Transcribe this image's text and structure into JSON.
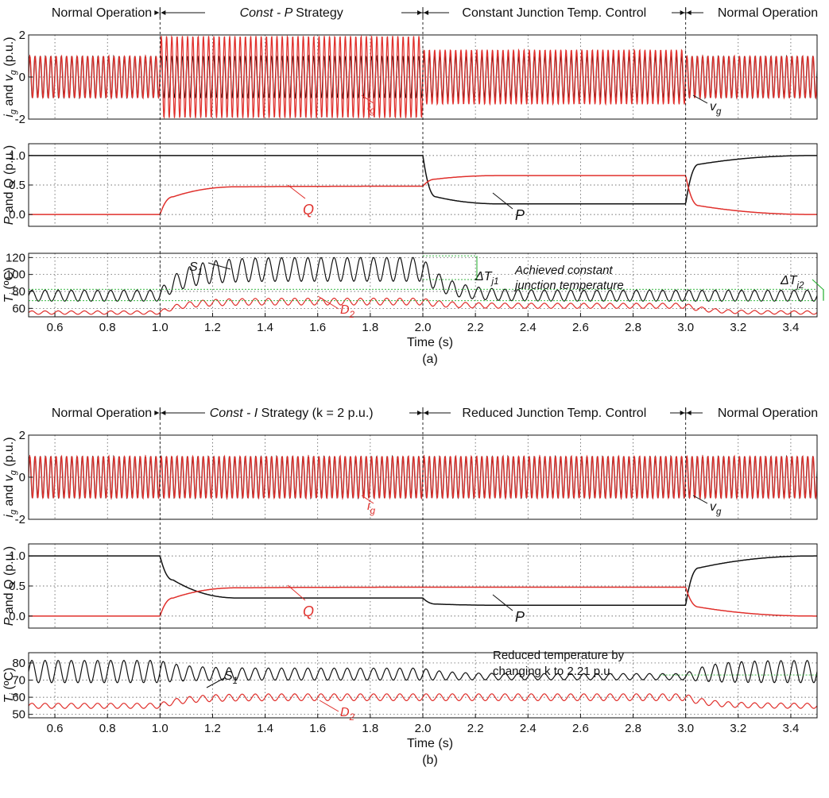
{
  "figure": {
    "colors": {
      "grid_current": "#e0302c",
      "grid_voltage": "#111111",
      "reactive_power": "#e0302c",
      "active_power": "#111111",
      "s1": "#111111",
      "d2": "#e0302c",
      "reference": "#1fae2a",
      "text": "#111111",
      "red_text": "#e0302c"
    },
    "panels": [
      {
        "caption": "(a)",
        "x_label": "Time (s)",
        "phases": [
          {
            "text": "Normal Operation",
            "italic_prefix": ""
          },
          {
            "text": "Strategy",
            "italic_prefix": "Const - P"
          },
          {
            "text": "Constant Junction Temp. Control",
            "italic_prefix": ""
          },
          {
            "text": "Normal Operation",
            "italic_prefix": ""
          }
        ],
        "annotations": {
          "ig": "i",
          "ig_sub": "g",
          "vg": "v",
          "vg_sub": "g",
          "Q": "Q",
          "P": "P",
          "S1": "S",
          "S1_sub": "1",
          "D2": "D",
          "D2_sub": "2",
          "dTj1": "ΔT",
          "dTj1_sub": "j1",
          "dTj2": "ΔT",
          "dTj2_sub": "j2",
          "note1": "Achieved constant",
          "note2": "junction temperature"
        }
      },
      {
        "caption": "(b)",
        "x_label": "Time (s)",
        "phases": [
          {
            "text": "Normal Operation",
            "italic_prefix": ""
          },
          {
            "text": "Strategy (k = 2 p.u.)",
            "italic_prefix": "Const - I"
          },
          {
            "text": "Reduced Junction Temp. Control",
            "italic_prefix": ""
          },
          {
            "text": "Normal Operation",
            "italic_prefix": ""
          }
        ],
        "annotations": {
          "ig": "i",
          "ig_sub": "g",
          "vg": "v",
          "vg_sub": "g",
          "Q": "Q",
          "P": "P",
          "S1": "S",
          "S1_sub": "1",
          "D2": "D",
          "D2_sub": "2",
          "note1": "Reduced temperature by",
          "note2": "changing k to 2.21 p.u."
        }
      }
    ]
  },
  "chart_data": [
    {
      "panel": "(a)",
      "subplot": "currents_voltage",
      "type": "line",
      "ylabel": "ig and vg (p.u.)",
      "xlim": [
        0.5,
        3.5
      ],
      "ylim": [
        -2,
        2
      ],
      "yticks": [
        -2,
        0,
        2
      ],
      "series": [
        {
          "name": "vg",
          "color": "#111111",
          "segments": [
            {
              "t0": 0.5,
              "t1": 3.5,
              "amp": 1.0
            }
          ]
        },
        {
          "name": "ig",
          "color": "#e0302c",
          "segments": [
            {
              "t0": 0.5,
              "t1": 1.0,
              "amp": 1.0
            },
            {
              "t0": 1.0,
              "t1": 2.0,
              "amp": 1.95
            },
            {
              "t0": 2.0,
              "t1": 3.0,
              "amp": 1.3
            },
            {
              "t0": 3.0,
              "t1": 3.5,
              "amp": 1.0
            }
          ]
        }
      ]
    },
    {
      "panel": "(a)",
      "subplot": "power",
      "type": "line",
      "ylabel": "P and Q (p.u.)",
      "xlim": [
        0.5,
        3.5
      ],
      "ylim": [
        -0.2,
        1.2
      ],
      "yticks": [
        0.0,
        0.5,
        1.0
      ],
      "series": [
        {
          "name": "P",
          "color": "#111111",
          "values": [
            [
              0.5,
              1.0
            ],
            [
              1.0,
              1.0
            ],
            [
              2.0,
              1.0
            ],
            [
              2.05,
              0.3
            ],
            [
              2.3,
              0.18
            ],
            [
              3.0,
              0.18
            ],
            [
              3.05,
              0.85
            ],
            [
              3.5,
              1.0
            ]
          ]
        },
        {
          "name": "Q",
          "color": "#e0302c",
          "values": [
            [
              0.5,
              0.0
            ],
            [
              1.0,
              0.0
            ],
            [
              1.05,
              0.3
            ],
            [
              1.3,
              0.47
            ],
            [
              2.0,
              0.48
            ],
            [
              2.05,
              0.6
            ],
            [
              2.3,
              0.66
            ],
            [
              3.0,
              0.66
            ],
            [
              3.05,
              0.15
            ],
            [
              3.5,
              0.0
            ]
          ]
        }
      ]
    },
    {
      "panel": "(a)",
      "subplot": "temperature",
      "type": "line",
      "ylabel": "Tj (°C)",
      "xlim": [
        0.5,
        3.5
      ],
      "ylim": [
        50,
        125
      ],
      "yticks": [
        60,
        80,
        100,
        120
      ],
      "xticks": [
        0.6,
        0.8,
        1.0,
        1.2,
        1.4,
        1.6,
        1.8,
        2.0,
        2.2,
        2.4,
        2.6,
        2.8,
        3.0,
        3.2,
        3.4
      ],
      "series": [
        {
          "name": "S1",
          "color": "#111111",
          "segments": [
            {
              "t0": 0.5,
              "t1": 1.0,
              "mean": 75,
              "swing": 6.5
            },
            {
              "t0": 1.0,
              "t1": 2.0,
              "mean": 106,
              "swing": 14
            },
            {
              "t0": 2.0,
              "t1": 3.0,
              "mean": 75,
              "swing": 6.5
            },
            {
              "t0": 3.0,
              "t1": 3.5,
              "mean": 75,
              "swing": 6.5
            }
          ]
        },
        {
          "name": "D2",
          "color": "#e0302c",
          "segments": [
            {
              "t0": 0.5,
              "t1": 1.0,
              "mean": 55,
              "swing": 2
            },
            {
              "t0": 1.0,
              "t1": 2.0,
              "mean": 68,
              "swing": 4
            },
            {
              "t0": 2.0,
              "t1": 3.0,
              "mean": 63,
              "swing": 3
            },
            {
              "t0": 3.0,
              "t1": 3.5,
              "mean": 55,
              "swing": 2
            }
          ]
        }
      ]
    },
    {
      "panel": "(b)",
      "subplot": "currents_voltage",
      "type": "line",
      "ylabel": "ig and vg (p.u.)",
      "xlim": [
        0.5,
        3.5
      ],
      "ylim": [
        -2,
        2
      ],
      "yticks": [
        -2,
        0,
        2
      ],
      "series": [
        {
          "name": "vg",
          "color": "#111111",
          "segments": [
            {
              "t0": 0.5,
              "t1": 3.5,
              "amp": 1.0
            }
          ]
        },
        {
          "name": "ig",
          "color": "#e0302c",
          "segments": [
            {
              "t0": 0.5,
              "t1": 3.0,
              "amp": 1.0
            },
            {
              "t0": 3.0,
              "t1": 3.5,
              "amp": 1.0
            }
          ]
        }
      ]
    },
    {
      "panel": "(b)",
      "subplot": "power",
      "type": "line",
      "ylabel": "P and Q (p.u.)",
      "xlim": [
        0.5,
        3.5
      ],
      "ylim": [
        -0.2,
        1.2
      ],
      "yticks": [
        0.0,
        0.5,
        1.0
      ],
      "series": [
        {
          "name": "P",
          "color": "#111111",
          "values": [
            [
              0.5,
              1.0
            ],
            [
              1.0,
              1.0
            ],
            [
              1.05,
              0.6
            ],
            [
              1.3,
              0.3
            ],
            [
              2.0,
              0.3
            ],
            [
              2.05,
              0.2
            ],
            [
              2.3,
              0.18
            ],
            [
              3.0,
              0.18
            ],
            [
              3.05,
              0.8
            ],
            [
              3.5,
              1.0
            ]
          ]
        },
        {
          "name": "Q",
          "color": "#e0302c",
          "values": [
            [
              0.5,
              0.0
            ],
            [
              1.0,
              0.0
            ],
            [
              1.05,
              0.3
            ],
            [
              1.3,
              0.47
            ],
            [
              2.0,
              0.48
            ],
            [
              3.0,
              0.48
            ],
            [
              3.05,
              0.15
            ],
            [
              3.5,
              0.0
            ]
          ]
        }
      ]
    },
    {
      "panel": "(b)",
      "subplot": "temperature",
      "type": "line",
      "ylabel": "Tj (°C)",
      "xlim": [
        0.5,
        3.5
      ],
      "ylim": [
        48,
        86
      ],
      "yticks": [
        50,
        60,
        70,
        80
      ],
      "xticks": [
        0.6,
        0.8,
        1.0,
        1.2,
        1.4,
        1.6,
        1.8,
        2.0,
        2.2,
        2.4,
        2.6,
        2.8,
        3.0,
        3.2,
        3.4
      ],
      "series": [
        {
          "name": "S1",
          "color": "#111111",
          "segments": [
            {
              "t0": 0.5,
              "t1": 1.0,
              "mean": 75,
              "swing": 6.5
            },
            {
              "t0": 1.0,
              "t1": 2.0,
              "mean": 73.5,
              "swing": 3.5
            },
            {
              "t0": 2.0,
              "t1": 3.0,
              "mean": 72,
              "swing": 1.8
            },
            {
              "t0": 3.0,
              "t1": 3.5,
              "mean": 75,
              "swing": 6.5
            }
          ]
        },
        {
          "name": "D2",
          "color": "#e0302c",
          "segments": [
            {
              "t0": 0.5,
              "t1": 1.0,
              "mean": 55,
              "swing": 1.5
            },
            {
              "t0": 1.0,
              "t1": 2.0,
              "mean": 60,
              "swing": 2
            },
            {
              "t0": 2.0,
              "t1": 3.0,
              "mean": 60,
              "swing": 2
            },
            {
              "t0": 3.0,
              "t1": 3.5,
              "mean": 55,
              "swing": 1.5
            }
          ]
        }
      ]
    }
  ]
}
